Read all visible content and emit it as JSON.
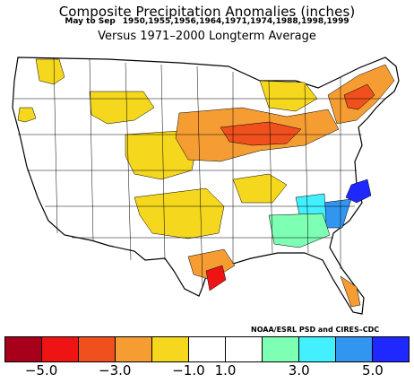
{
  "title": "Composite Precipitation Anomalies (inches)",
  "subtitle_period": "May to Sep",
  "subtitle_years": "1950,1955,1956,1964,1971,1974,1988,1998,1999",
  "subtitle_base": "Versus 1971–2000 Longterm Average",
  "credit": "NOAA/ESRL PSD and CIRES–CDC",
  "colorbar": {
    "colors": [
      "#a8001a",
      "#ee1414",
      "#f0501e",
      "#f59d32",
      "#f5d71e",
      "#ffffff",
      "#ffffff",
      "#7dffb4",
      "#42f0ff",
      "#3296f0",
      "#1e28ff"
    ],
    "tick_labels": [
      "−5.0",
      "−3.0",
      "−1.0",
      "1.0",
      "3.0",
      "5.0"
    ]
  },
  "map_regions": [
    {
      "name": "pacific-northwest",
      "category": "light-yellow"
    },
    {
      "name": "northern-rockies",
      "category": "light-yellow"
    },
    {
      "name": "central-plains",
      "category": "light-yellow"
    },
    {
      "name": "midwest-ohio-valley",
      "category": "orange"
    },
    {
      "name": "texas-coast",
      "category": "red"
    },
    {
      "name": "north-carolina-coast",
      "category": "blue"
    },
    {
      "name": "southeast-coast",
      "category": "cyan"
    }
  ]
}
